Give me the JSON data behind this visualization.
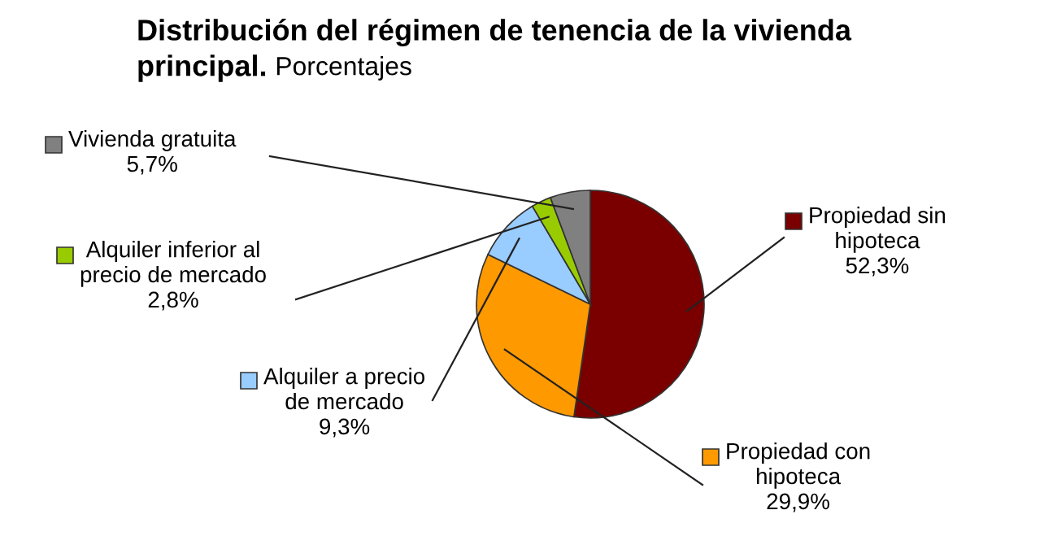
{
  "chart_data": {
    "type": "pie",
    "title": "Distribución del régimen de tenencia de la vivienda principal.",
    "subtitle": "Porcentajes",
    "categories": [
      "Propiedad sin hipoteca",
      "Propiedad con hipoteca",
      "Alquiler a precio de mercado",
      "Alquiler inferior al precio de mercado",
      "Vivienda gratuita"
    ],
    "values": [
      52.3,
      29.9,
      9.3,
      2.8,
      5.7
    ],
    "value_labels": [
      "52,3%",
      "29,9%",
      "9,3%",
      "2,8%",
      "5,7%"
    ],
    "colors": [
      "#7a0000",
      "#ff9900",
      "#99ccff",
      "#99cc00",
      "#808080"
    ],
    "legend": "left"
  }
}
